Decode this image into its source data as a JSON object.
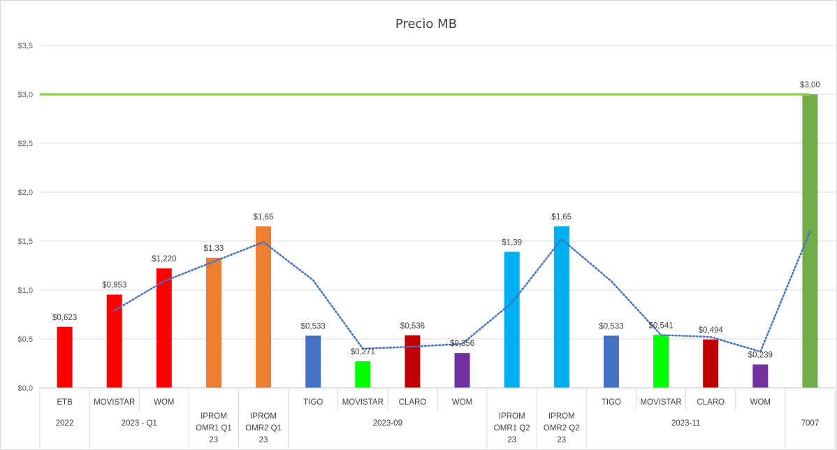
{
  "chart_data": {
    "type": "bar",
    "title": "Precio MB",
    "ylim": [
      0,
      3.5
    ],
    "y_ticks": [
      "$0,0",
      "$0,5",
      "$1,0",
      "$1,5",
      "$2,0",
      "$2,5",
      "$3,0",
      "$3,5"
    ],
    "y_tick_values": [
      0,
      0.5,
      1.0,
      1.5,
      2.0,
      2.5,
      3.0,
      3.5
    ],
    "grid": true,
    "categories": [
      [
        "ETB"
      ],
      [
        "MOVISTAR"
      ],
      [
        "WOM"
      ],
      [
        "IPROM",
        "OMR1 Q1",
        "23"
      ],
      [
        "IPROM",
        "OMR2 Q1",
        "23"
      ],
      [
        "TIGO"
      ],
      [
        "MOVISTAR"
      ],
      [
        "CLARO"
      ],
      [
        "WOM"
      ],
      [
        "IPROM",
        "OMR1 Q2",
        "23"
      ],
      [
        "IPROM",
        "OMR2 Q2",
        "23"
      ],
      [
        "TIGO"
      ],
      [
        "MOVISTAR"
      ],
      [
        "CLARO"
      ],
      [
        "WOM"
      ],
      [
        ""
      ]
    ],
    "groups": [
      {
        "label": "2022",
        "from": 0,
        "to": 0
      },
      {
        "label": "2023 - Q1",
        "from": 1,
        "to": 2
      },
      {
        "label": "",
        "from": 3,
        "to": 3
      },
      {
        "label": "",
        "from": 4,
        "to": 4
      },
      {
        "label": "2023-09",
        "from": 5,
        "to": 8
      },
      {
        "label": "",
        "from": 9,
        "to": 9
      },
      {
        "label": "",
        "from": 10,
        "to": 10
      },
      {
        "label": "2023-11",
        "from": 11,
        "to": 14
      },
      {
        "label": "7007",
        "from": 15,
        "to": 15
      }
    ],
    "values": [
      0.623,
      0.953,
      1.22,
      1.33,
      1.65,
      0.533,
      0.271,
      0.536,
      0.356,
      1.39,
      1.65,
      0.533,
      0.541,
      0.494,
      0.239,
      3.0
    ],
    "data_labels": [
      "$0,623",
      "$0,953",
      "$1,220",
      "$1,33",
      "$1,65",
      "$0,533",
      "$0,271",
      "$0,536",
      "$0,356",
      "$1,39",
      "$1,65",
      "$0,533",
      "$0,541",
      "$0,494",
      "$0,239",
      "$3,00"
    ],
    "bar_colors": [
      "#ff0000",
      "#ff0000",
      "#ff0000",
      "#ed7d31",
      "#ed7d31",
      "#4472c4",
      "#00ff00",
      "#c00000",
      "#7030a0",
      "#00b0f0",
      "#00b0f0",
      "#4472c4",
      "#00ff00",
      "#c00000",
      "#7030a0",
      "#70ad47"
    ],
    "reference_line": {
      "value": 3.0,
      "color": "#92d050"
    },
    "trendline": {
      "style": "dotted",
      "color": "#4472c4",
      "points": [
        {
          "x": 1,
          "y": 0.79
        },
        {
          "x": 2,
          "y": 1.09
        },
        {
          "x": 3,
          "y": 1.29
        },
        {
          "x": 4,
          "y": 1.49
        },
        {
          "x": 5,
          "y": 1.1
        },
        {
          "x": 6,
          "y": 0.4
        },
        {
          "x": 7,
          "y": 0.42
        },
        {
          "x": 8,
          "y": 0.45
        },
        {
          "x": 9,
          "y": 0.87
        },
        {
          "x": 10,
          "y": 1.52
        },
        {
          "x": 11,
          "y": 1.09
        },
        {
          "x": 12,
          "y": 0.54
        },
        {
          "x": 13,
          "y": 0.52
        },
        {
          "x": 14,
          "y": 0.37
        },
        {
          "x": 15,
          "y": 1.6
        }
      ]
    }
  }
}
